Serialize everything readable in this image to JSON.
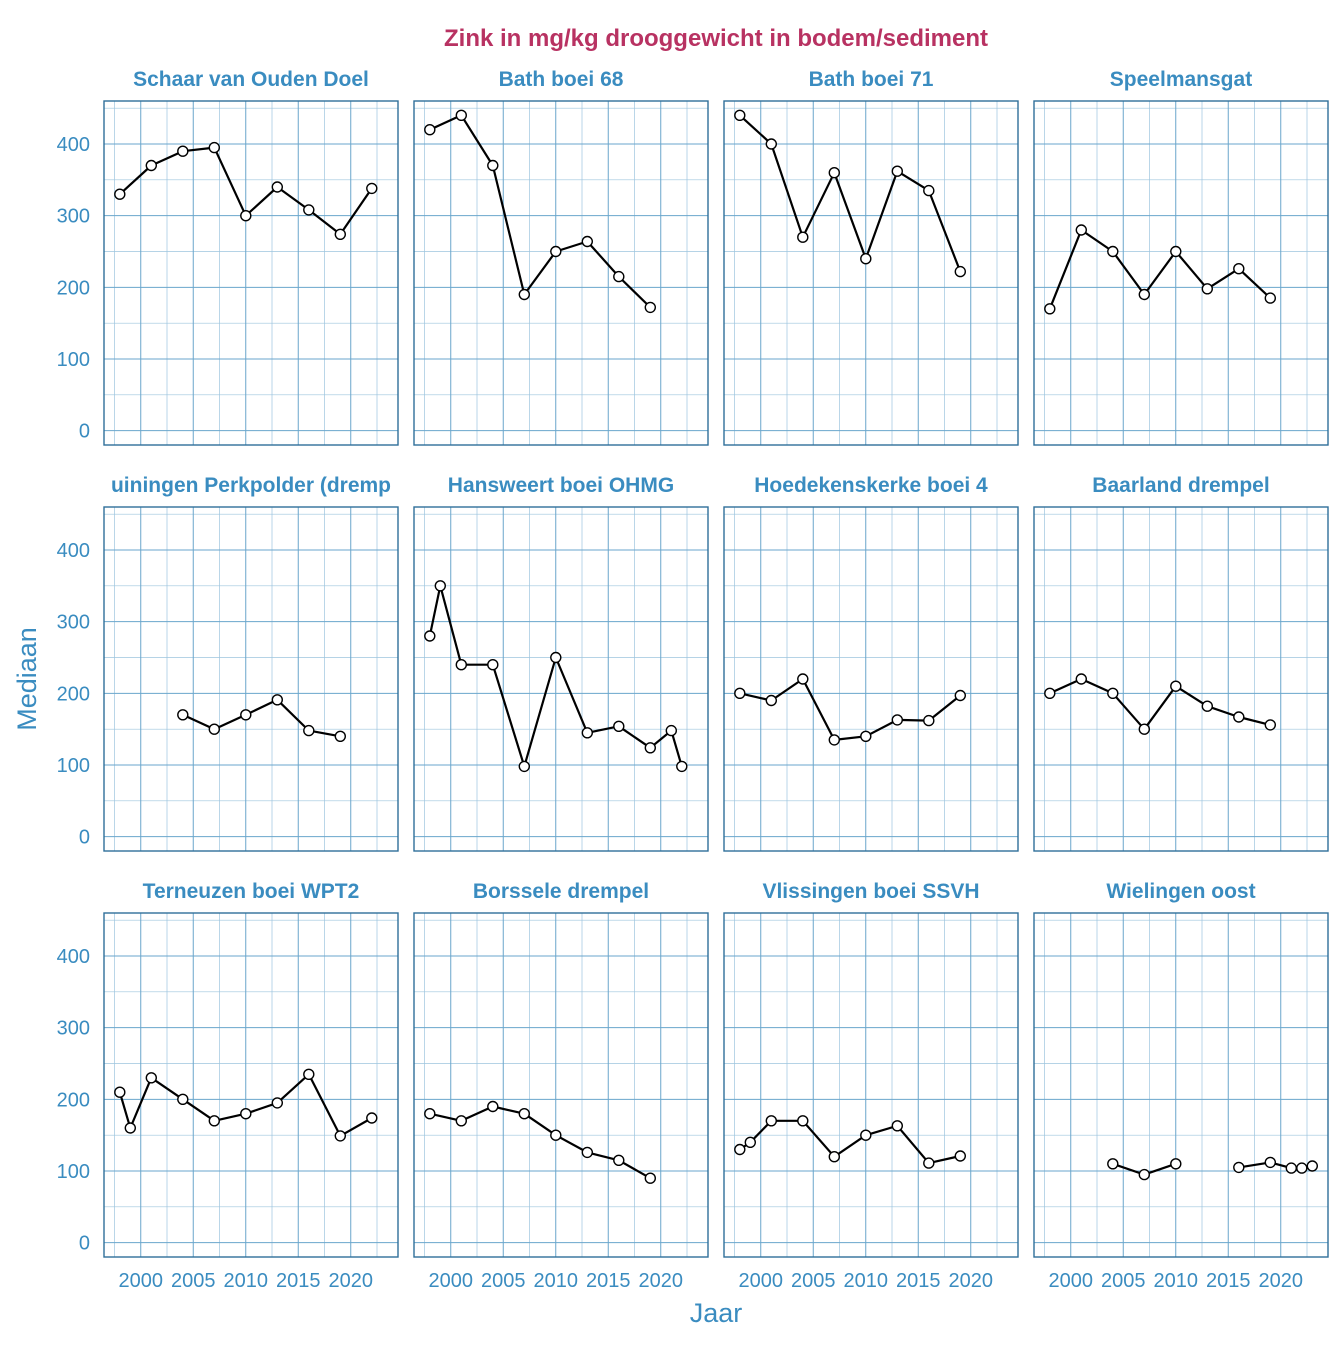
{
  "colors": {
    "title": "#b83262",
    "strip": "#3a8cc0",
    "axis_text": "#3a8cc0",
    "panel_border": "#2f6f9a",
    "grid_major": "#6aa6cc",
    "grid_minor": "#9cc4de",
    "line": "#000000",
    "point_fill": "#ffffff"
  },
  "chart_data": {
    "type": "line",
    "title": "Zink in mg/kg drooggewicht in bodem/sediment",
    "xlabel": "Jaar",
    "ylabel": "Mediaan",
    "xlim": [
      1996.5,
      2024.5
    ],
    "ylim": [
      -20,
      460
    ],
    "x_ticks": [
      2000,
      2005,
      2010,
      2015,
      2020
    ],
    "x_tick_labels": [
      "2000",
      "2005",
      "2010",
      "2015",
      "2020"
    ],
    "y_ticks": [
      0,
      100,
      200,
      300,
      400
    ],
    "y_tick_labels": [
      "0",
      "100",
      "200",
      "300",
      "400"
    ],
    "facets": [
      {
        "name": "Schaar van Ouden Doel",
        "label": "Schaar van Ouden Doel",
        "segments": [
          [
            [
              1998,
              330
            ],
            [
              2001,
              370
            ],
            [
              2004,
              390
            ],
            [
              2007,
              395
            ],
            [
              2010,
              300
            ],
            [
              2013,
              340
            ],
            [
              2016,
              308
            ],
            [
              2019,
              274
            ],
            [
              2022,
              338
            ]
          ]
        ]
      },
      {
        "name": "Bath boei 68",
        "label": "Bath boei 68",
        "segments": [
          [
            [
              1998,
              420
            ],
            [
              2001,
              440
            ],
            [
              2004,
              370
            ],
            [
              2007,
              190
            ],
            [
              2010,
              250
            ],
            [
              2013,
              264
            ],
            [
              2016,
              215
            ],
            [
              2019,
              172
            ]
          ]
        ]
      },
      {
        "name": "Bath boei 71",
        "label": "Bath boei 71",
        "segments": [
          [
            [
              1998,
              440
            ],
            [
              2001,
              400
            ],
            [
              2004,
              270
            ],
            [
              2007,
              360
            ],
            [
              2010,
              240
            ],
            [
              2013,
              362
            ],
            [
              2016,
              335
            ],
            [
              2019,
              222
            ]
          ]
        ]
      },
      {
        "name": "Speelmansgat",
        "label": "Speelmansgat",
        "segments": [
          [
            [
              1998,
              170
            ],
            [
              2001,
              280
            ],
            [
              2004,
              250
            ],
            [
              2007,
              190
            ],
            [
              2010,
              250
            ],
            [
              2013,
              198
            ],
            [
              2016,
              226
            ],
            [
              2019,
              185
            ]
          ]
        ]
      },
      {
        "name": "Hansweert/Kruiningen Perkpolder (drempel)",
        "label": "uiningen Perkpolder (dremp",
        "segments": [
          [
            [
              2004,
              170
            ],
            [
              2007,
              150
            ],
            [
              2010,
              170
            ],
            [
              2013,
              191
            ],
            [
              2016,
              148
            ],
            [
              2019,
              140
            ]
          ]
        ]
      },
      {
        "name": "Hansweert boei OHMG",
        "label": "Hansweert boei OHMG",
        "segments": [
          [
            [
              1998,
              280
            ],
            [
              1999,
              350
            ],
            [
              2001,
              240
            ],
            [
              2004,
              240
            ],
            [
              2007,
              98
            ],
            [
              2010,
              250
            ],
            [
              2013,
              145
            ],
            [
              2016,
              154
            ],
            [
              2019,
              124
            ],
            [
              2021,
              148
            ],
            [
              2022,
              98
            ]
          ]
        ]
      },
      {
        "name": "Hoedekenskerke boei 4",
        "label": "Hoedekenskerke boei 4",
        "segments": [
          [
            [
              1998,
              200
            ],
            [
              2001,
              190
            ],
            [
              2004,
              220
            ],
            [
              2007,
              135
            ],
            [
              2010,
              140
            ],
            [
              2013,
              163
            ],
            [
              2016,
              162
            ],
            [
              2019,
              197
            ]
          ]
        ]
      },
      {
        "name": "Baarland drempel",
        "label": "Baarland drempel",
        "segments": [
          [
            [
              1998,
              200
            ],
            [
              2001,
              220
            ],
            [
              2004,
              200
            ],
            [
              2007,
              150
            ],
            [
              2010,
              210
            ],
            [
              2013,
              182
            ],
            [
              2016,
              167
            ],
            [
              2019,
              156
            ]
          ]
        ]
      },
      {
        "name": "Terneuzen boei WPT2",
        "label": "Terneuzen boei WPT2",
        "segments": [
          [
            [
              1998,
              210
            ],
            [
              1999,
              160
            ],
            [
              2001,
              230
            ],
            [
              2004,
              200
            ],
            [
              2007,
              170
            ],
            [
              2010,
              180
            ],
            [
              2013,
              195
            ],
            [
              2016,
              235
            ],
            [
              2019,
              149
            ],
            [
              2022,
              174
            ]
          ]
        ]
      },
      {
        "name": "Borssele drempel",
        "label": "Borssele drempel",
        "segments": [
          [
            [
              1998,
              180
            ],
            [
              2001,
              170
            ],
            [
              2004,
              190
            ],
            [
              2007,
              180
            ],
            [
              2010,
              150
            ],
            [
              2013,
              126
            ],
            [
              2016,
              115
            ],
            [
              2019,
              90
            ]
          ]
        ]
      },
      {
        "name": "Vlissingen boei SSVH",
        "label": "Vlissingen boei SSVH",
        "segments": [
          [
            [
              1998,
              130
            ],
            [
              1999,
              140
            ],
            [
              2001,
              170
            ],
            [
              2004,
              170
            ],
            [
              2007,
              120
            ],
            [
              2010,
              150
            ],
            [
              2013,
              163
            ],
            [
              2016,
              111
            ],
            [
              2019,
              121
            ]
          ]
        ]
      },
      {
        "name": "Wielingen oost",
        "label": "Wielingen oost",
        "segments": [
          [
            [
              2004,
              110
            ],
            [
              2007,
              95
            ],
            [
              2010,
              110
            ]
          ],
          [
            [
              2016,
              105
            ],
            [
              2019,
              112
            ],
            [
              2021,
              104
            ],
            [
              2022,
              104
            ],
            [
              2023,
              107
            ]
          ]
        ]
      }
    ]
  }
}
